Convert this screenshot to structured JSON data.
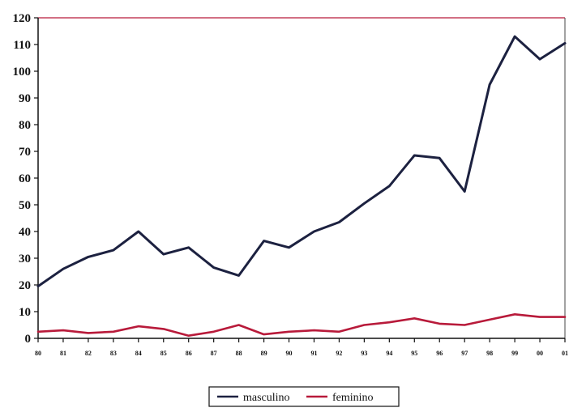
{
  "chart_data": {
    "type": "line",
    "title": "",
    "xlabel": "",
    "ylabel": "",
    "ylim": [
      0,
      120
    ],
    "yticks": [
      0,
      10,
      20,
      30,
      40,
      50,
      60,
      70,
      80,
      90,
      100,
      110,
      120
    ],
    "categories": [
      "80",
      "81",
      "82",
      "83",
      "84",
      "85",
      "86",
      "87",
      "88",
      "89",
      "90",
      "91",
      "92",
      "93",
      "94",
      "95",
      "96",
      "97",
      "98",
      "99",
      "00",
      "01"
    ],
    "series": [
      {
        "name": "masculino",
        "color": "#1c2140",
        "values": [
          19.5,
          26,
          30.5,
          33,
          40,
          31.5,
          34,
          26.5,
          23.5,
          36.5,
          34,
          40,
          43.5,
          50.5,
          57,
          68.5,
          67.5,
          55,
          95,
          113,
          104.5,
          110.5
        ]
      },
      {
        "name": "feminino",
        "color": "#b81a3a",
        "values": [
          2.5,
          3,
          2,
          2.5,
          4.5,
          3.5,
          1,
          2.5,
          5,
          1.5,
          2.5,
          3,
          2.5,
          5,
          6,
          7.5,
          5.5,
          5,
          7,
          9,
          8,
          8
        ]
      }
    ],
    "grid": false,
    "legend": "bottom"
  }
}
